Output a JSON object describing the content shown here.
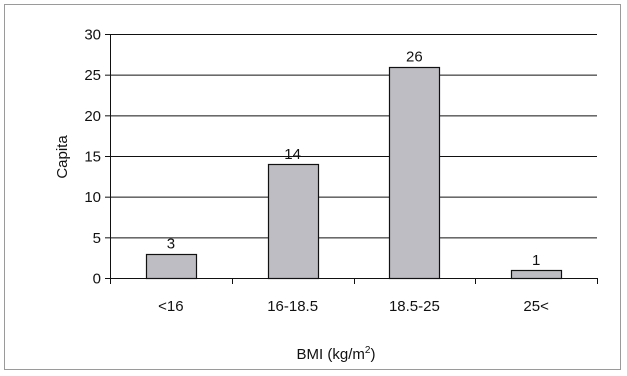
{
  "chart_data": {
    "type": "bar",
    "categories": [
      "<16",
      "16-18.5",
      "18.5-25",
      "25<"
    ],
    "values": [
      3,
      14,
      26,
      1
    ],
    "data_labels": [
      "3",
      "14",
      "26",
      "1"
    ],
    "title": "",
    "xlabel": "BMI (kg/m²)",
    "ylabel": "Capita",
    "ylim": [
      0,
      30
    ],
    "yticks": [
      0,
      5,
      10,
      15,
      20,
      25,
      30
    ],
    "ytick_labels": [
      "0",
      "5",
      "10",
      "15",
      "20",
      "25",
      "30"
    ],
    "grid": true,
    "legend": "none",
    "colors": {
      "bar_fill": "#bdbdc3",
      "bar_stroke": "#111111",
      "grid": "#111111",
      "axis": "#111111",
      "frame": "#9a9a9a"
    }
  }
}
